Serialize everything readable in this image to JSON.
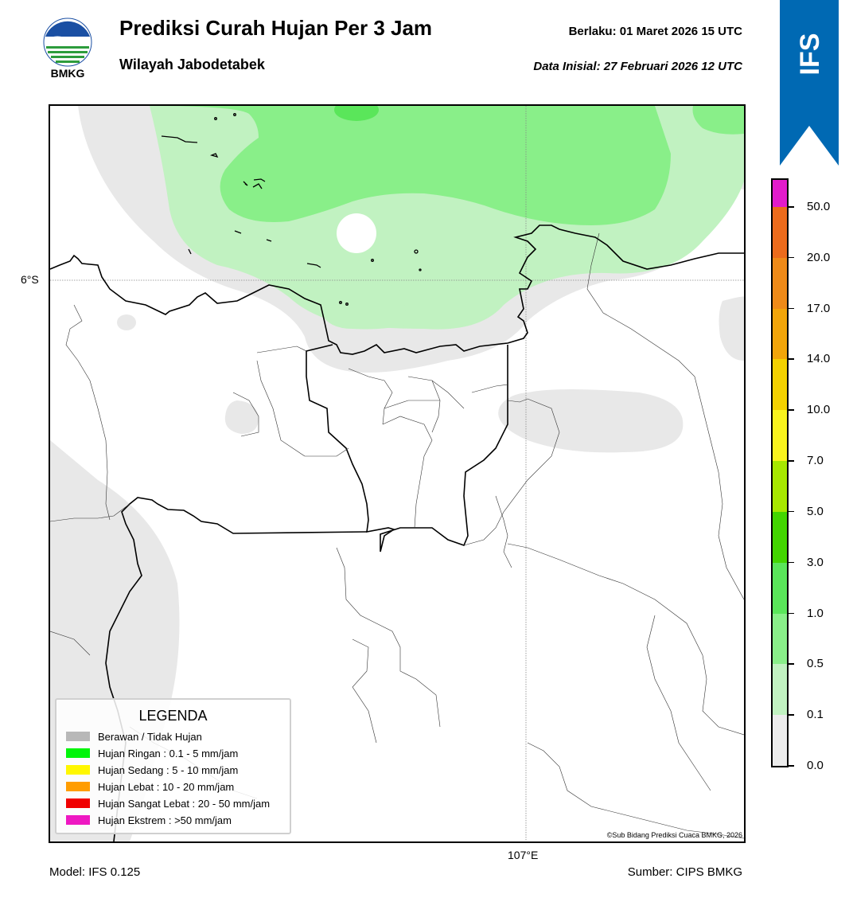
{
  "header": {
    "title": "Prediksi Curah Hujan Per 3 Jam",
    "subtitle": "Wilayah Jabodetabek",
    "valid_label": "Berlaku:  01 Maret 2026 15 UTC",
    "init_label": "Data Inisial:  27 Februari 2026 12 UTC",
    "logo_text": "BMKG"
  },
  "badge": {
    "text": "IFS",
    "color": "#0069b3"
  },
  "map": {
    "lat_label": "6°S",
    "lon_label": "107°E",
    "copyright": "©Sub Bidang Prediksi Cuaca BMKG, 2026"
  },
  "footer": {
    "model": "Model: IFS 0.125",
    "source": "Sumber: CIPS BMKG"
  },
  "colorbar": {
    "levels": [
      "0.0",
      "0.1",
      "0.5",
      "1.0",
      "3.0",
      "5.0",
      "7.0",
      "10.0",
      "14.0",
      "17.0",
      "20.0",
      "50.0"
    ],
    "colors": [
      "#ececec",
      "#c1f2c1",
      "#89ef89",
      "#5ae65a",
      "#43d600",
      "#a7e800",
      "#f8f31d",
      "#f4d100",
      "#f2a50a",
      "#ef8a18",
      "#ec6b1c",
      "#e6241c",
      "#e21bcb"
    ]
  },
  "legend": {
    "title": "LEGENDA",
    "items": [
      {
        "label": "Berawan / Tidak Hujan",
        "color": "#b8b8b8"
      },
      {
        "label": "Hujan Ringan : 0.1 - 5 mm/jam",
        "color": "#00f50a"
      },
      {
        "label": "Hujan Sedang : 5 - 10 mm/jam",
        "color": "#fff700"
      },
      {
        "label": "Hujan Lebat : 10 - 20 mm/jam",
        "color": "#ff9d00"
      },
      {
        "label": "Hujan Sangat Lebat : 20 - 50 mm/jam",
        "color": "#f00000"
      },
      {
        "label": "Hujan Ekstrem : >50 mm/jam",
        "color": "#ee18c2"
      }
    ]
  }
}
